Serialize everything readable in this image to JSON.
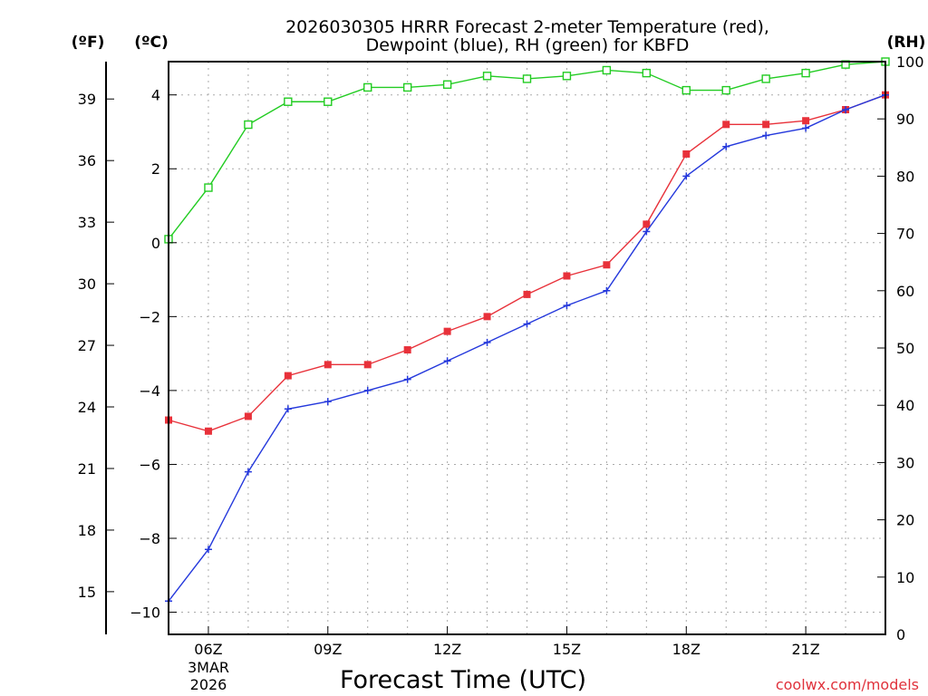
{
  "chart_data": {
    "type": "line",
    "title_line1": "2026030305 HRRR Forecast 2-meter Temperature (red),",
    "title_line2": "Dewpoint (blue), RH (green) for KBFD",
    "xlabel": "Forecast Time (UTC)",
    "date_label_1": "3MAR",
    "date_label_2": "2026",
    "credit": "coolwx.com/models",
    "left_outer_unit": "(ºF)",
    "left_inner_unit": "(ºC)",
    "right_unit": "(RH)",
    "x": [
      5,
      6,
      7,
      8,
      9,
      10,
      11,
      12,
      13,
      14,
      15,
      16,
      17,
      18,
      19,
      20,
      21,
      22,
      23
    ],
    "xlim": [
      5,
      23
    ],
    "x_ticks": [
      6,
      9,
      12,
      15,
      18,
      21
    ],
    "x_tick_labels": [
      "06Z",
      "09Z",
      "12Z",
      "15Z",
      "18Z",
      "21Z"
    ],
    "ylim_c": [
      -10.6,
      4.9
    ],
    "c_ticks": [
      -10,
      -8,
      -6,
      -4,
      -2,
      0,
      2,
      4
    ],
    "c_tick_labels": [
      "−10",
      "−8",
      "−6",
      "−4",
      "−2",
      "0",
      "2",
      "4"
    ],
    "f_ticks": [
      15,
      18,
      21,
      24,
      27,
      30,
      33,
      36,
      39
    ],
    "f_tick_labels": [
      "15",
      "18",
      "21",
      "24",
      "27",
      "30",
      "33",
      "36",
      "39"
    ],
    "ylim_rh": [
      0,
      100
    ],
    "rh_ticks": [
      0,
      10,
      20,
      30,
      40,
      50,
      60,
      70,
      80,
      90,
      100
    ],
    "rh_tick_labels": [
      "0",
      "10",
      "20",
      "30",
      "40",
      "50",
      "60",
      "70",
      "80",
      "90",
      "100"
    ],
    "grid": true,
    "series": [
      {
        "name": "Temperature",
        "axis": "C",
        "color": "#e8313a",
        "marker": "filled-square",
        "values": [
          -4.8,
          -5.1,
          -4.7,
          -3.6,
          -3.3,
          -3.3,
          -2.9,
          -2.4,
          -2.0,
          -1.4,
          -0.9,
          -0.6,
          0.5,
          2.4,
          3.2,
          3.2,
          3.3,
          3.6,
          4.0
        ]
      },
      {
        "name": "Dewpoint",
        "axis": "C",
        "color": "#2438dc",
        "marker": "plus",
        "values": [
          -9.7,
          -8.3,
          -6.2,
          -4.5,
          -4.3,
          -4.0,
          -3.7,
          -3.2,
          -2.7,
          -2.2,
          -1.7,
          -1.3,
          0.3,
          1.8,
          2.6,
          2.9,
          3.1,
          3.6,
          4.0
        ]
      },
      {
        "name": "RH",
        "axis": "RH",
        "color": "#22cc22",
        "marker": "open-square",
        "values": [
          69,
          78,
          89,
          93,
          93,
          95.5,
          95.5,
          96,
          97.5,
          97,
          97.5,
          98.5,
          98,
          95,
          95,
          97,
          98,
          99.5,
          100
        ]
      }
    ]
  }
}
